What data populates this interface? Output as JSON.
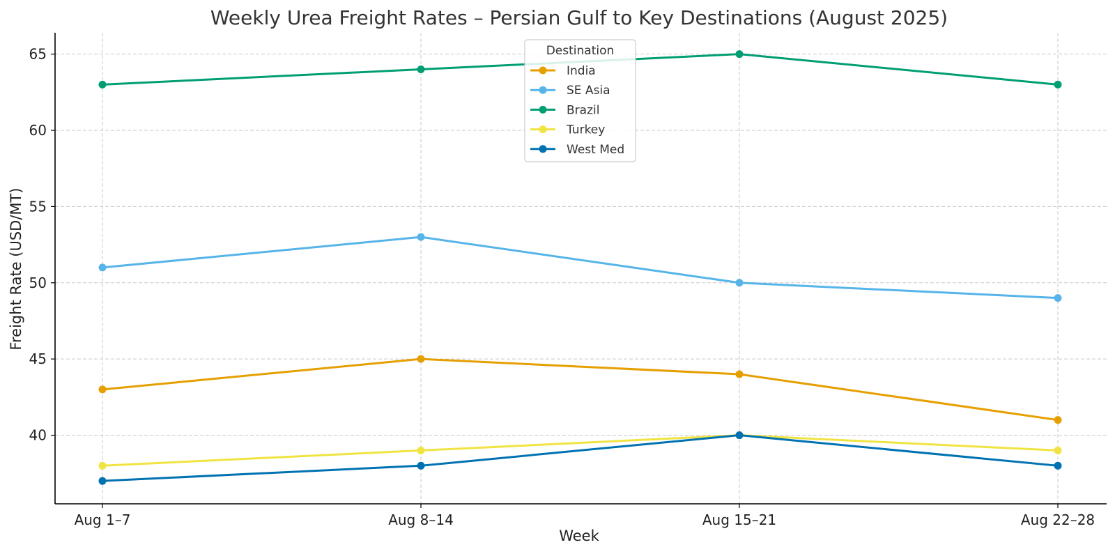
{
  "chart_data": {
    "type": "line",
    "title": "Weekly Urea Freight Rates – Persian Gulf to Key Destinations (August 2025)",
    "xlabel": "Week",
    "ylabel": "Freight Rate (USD/MT)",
    "categories": [
      "Aug 1–7",
      "Aug 8–14",
      "Aug 15–21",
      "Aug 22–28"
    ],
    "ylim": [
      35.5,
      66.4
    ],
    "yticks": [
      40,
      45,
      50,
      55,
      60,
      65
    ],
    "grid": true,
    "markers": true,
    "legend": {
      "title": "Destination",
      "placement": "upper center"
    },
    "series": [
      {
        "name": "India",
        "color": "#E69F00",
        "values": [
          43,
          45,
          44,
          41
        ]
      },
      {
        "name": "SE Asia",
        "color": "#56B4E9",
        "values": [
          51,
          53,
          50,
          49
        ]
      },
      {
        "name": "Brazil",
        "color": "#009E73",
        "values": [
          63,
          64,
          65,
          63
        ]
      },
      {
        "name": "Turkey",
        "color": "#F0E442",
        "values": [
          38,
          39,
          40,
          39
        ]
      },
      {
        "name": "West Med",
        "color": "#0072B2",
        "values": [
          37,
          38,
          40,
          38
        ]
      }
    ]
  }
}
